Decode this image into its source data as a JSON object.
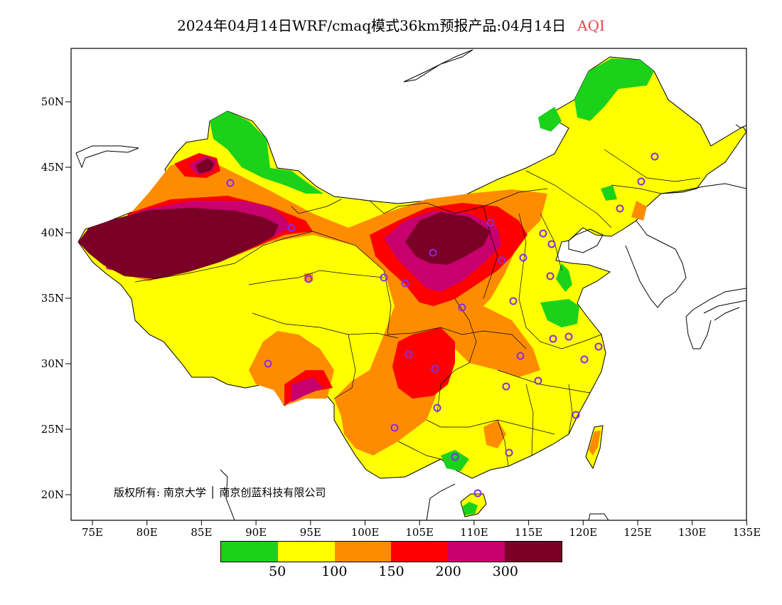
{
  "title": {
    "main": "2024年04月14日WRF/cmaq模式36km预报产品:04月14日",
    "variable": "AQI"
  },
  "copyright": "版权所有: 南京大学 │ 南京创蓝科技有限公司",
  "axes": {
    "lat_labels": [
      "20N",
      "25N",
      "30N",
      "35N",
      "40N",
      "45N",
      "50N"
    ],
    "lon_labels": [
      "75E",
      "80E",
      "85E",
      "90E",
      "95E",
      "100E",
      "105E",
      "110E",
      "115E",
      "120E",
      "125E",
      "130E",
      "135E"
    ]
  },
  "legend": {
    "labels": [
      "50",
      "100",
      "150",
      "200",
      "300"
    ],
    "colors": [
      "#1bd21b",
      "#ffff00",
      "#ff8c00",
      "#ff0000",
      "#c8006e",
      "#7a0026"
    ]
  },
  "colors": {
    "good": "#1bd21b",
    "moderate": "#ffff00",
    "sensitive": "#ff8c00",
    "unhealthy": "#ff0000",
    "very_unhealthy": "#c8006e",
    "hazardous": "#7a0026",
    "station_marker": "#8a2be2"
  }
}
